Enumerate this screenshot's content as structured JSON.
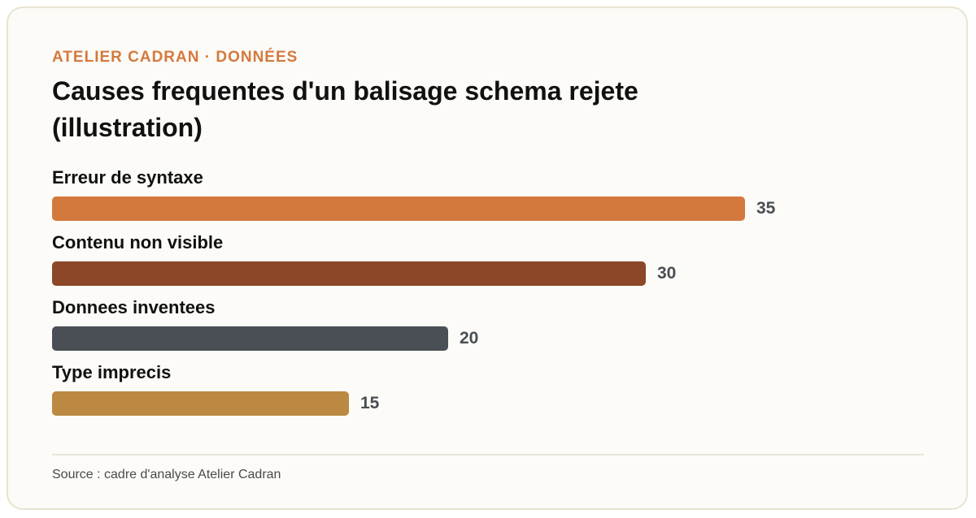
{
  "header": {
    "eyebrow": "ATELIER CADRAN · DONNÉES",
    "title": "Causes frequentes d'un balisage schema rejete (illustration)"
  },
  "chart_data": {
    "type": "bar",
    "orientation": "horizontal",
    "categories": [
      "Erreur de syntaxe",
      "Contenu non visible",
      "Donnees inventees",
      "Type imprecis"
    ],
    "values": [
      35,
      30,
      20,
      15
    ],
    "colors": [
      "#d4793e",
      "#8b4727",
      "#4a4f55",
      "#bb8941"
    ],
    "xlim": [
      0,
      100
    ],
    "grid": false,
    "legend": "none"
  },
  "footer": {
    "source": "Source : cadre d'analyse Atelier Cadran"
  }
}
